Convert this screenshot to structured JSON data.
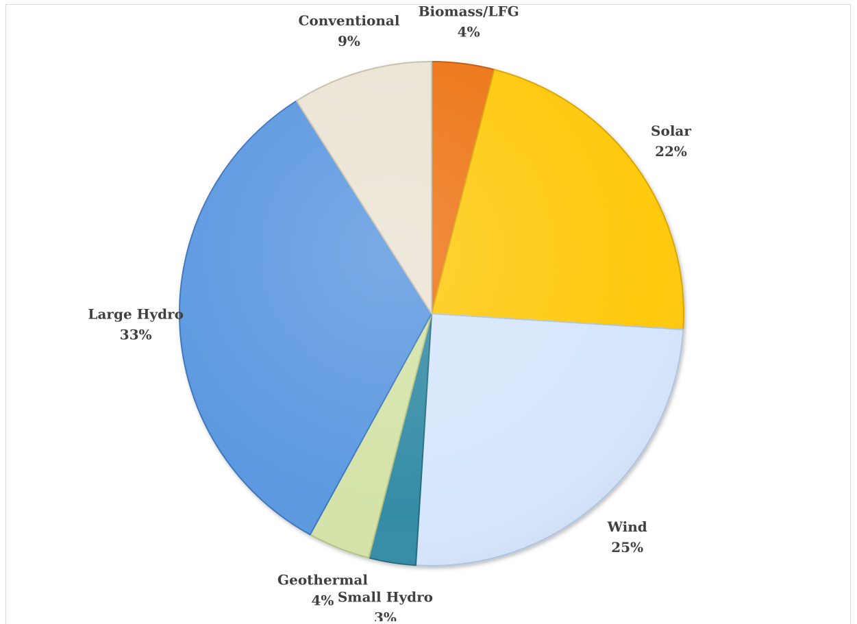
{
  "chart_data": {
    "type": "pie",
    "title": "",
    "slices": [
      {
        "label": "Biomass/LFG",
        "value": 4,
        "display": "4%",
        "color": "#ED7416",
        "edge": "#C45A0B"
      },
      {
        "label": "Solar",
        "value": 22,
        "display": "22%",
        "color": "#FFC90A",
        "edge": "#D9A600"
      },
      {
        "label": "Wind",
        "value": 25,
        "display": "25%",
        "color": "#D6E6FB",
        "edge": "#AFC5E2"
      },
      {
        "label": "Small Hydro",
        "value": 3,
        "display": "3%",
        "color": "#348CA6",
        "edge": "#236B80"
      },
      {
        "label": "Geothermal",
        "value": 4,
        "display": "4%",
        "color": "#D4E3A8",
        "edge": "#B0C283"
      },
      {
        "label": "Large Hydro",
        "value": 33,
        "display": "33%",
        "color": "#5B98E0",
        "edge": "#3E77BC"
      },
      {
        "label": "Conventional",
        "value": 9,
        "display": "9%",
        "color": "#EAE4D4",
        "edge": "#C8C0AA"
      }
    ],
    "start_angle_deg": 0,
    "direction": "clockwise",
    "legend": "none",
    "data_labels": "outside"
  }
}
